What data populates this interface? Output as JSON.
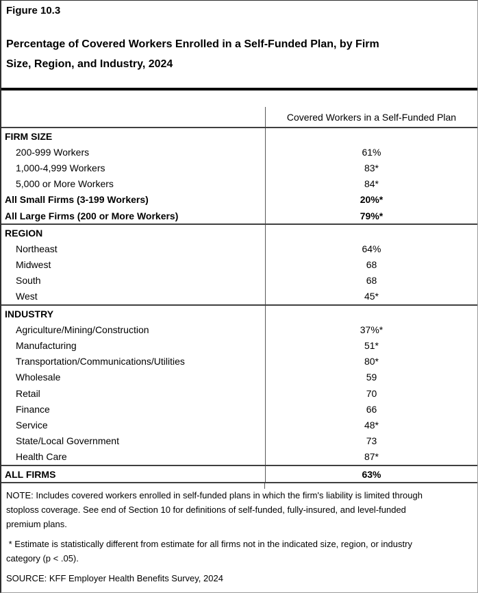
{
  "figure_label": "Figure 10.3",
  "title_lines": [
    "Percentage of Covered Workers Enrolled in a Self-Funded Plan, by Firm",
    "Size, Region, and Industry, 2024"
  ],
  "table": {
    "value_column_header": "Covered Workers in a Self-Funded Plan",
    "rows": [
      {
        "label": "FIRM SIZE",
        "value": "",
        "variant": "section",
        "rule_above": false
      },
      {
        "label": "200-999 Workers",
        "value": "61%",
        "variant": "indent",
        "rule_above": false
      },
      {
        "label": "1,000-4,999 Workers",
        "value": "83*",
        "variant": "indent",
        "rule_above": false
      },
      {
        "label": "5,000 or More Workers",
        "value": "84*",
        "variant": "indent",
        "rule_above": false
      },
      {
        "label": "All Small Firms (3-199 Workers)",
        "value": "20%*",
        "variant": "summary",
        "rule_above": false
      },
      {
        "label": "All Large Firms (200 or More Workers)",
        "value": "79%*",
        "variant": "summary",
        "rule_above": false
      },
      {
        "label": "REGION",
        "value": "",
        "variant": "section",
        "rule_above": true
      },
      {
        "label": "Northeast",
        "value": "64%",
        "variant": "indent",
        "rule_above": false
      },
      {
        "label": "Midwest",
        "value": "68",
        "variant": "indent",
        "rule_above": false
      },
      {
        "label": "South",
        "value": "68",
        "variant": "indent",
        "rule_above": false
      },
      {
        "label": "West",
        "value": "45*",
        "variant": "indent",
        "rule_above": false
      },
      {
        "label": "INDUSTRY",
        "value": "",
        "variant": "section",
        "rule_above": true
      },
      {
        "label": "Agriculture/Mining/Construction",
        "value": "37%*",
        "variant": "indent",
        "rule_above": false
      },
      {
        "label": "Manufacturing",
        "value": "51*",
        "variant": "indent",
        "rule_above": false
      },
      {
        "label": "Transportation/Communications/Utilities",
        "value": "80*",
        "variant": "indent",
        "rule_above": false
      },
      {
        "label": "Wholesale",
        "value": "59",
        "variant": "indent",
        "rule_above": false
      },
      {
        "label": "Retail",
        "value": "70",
        "variant": "indent",
        "rule_above": false
      },
      {
        "label": "Finance",
        "value": "66",
        "variant": "indent",
        "rule_above": false
      },
      {
        "label": "Service",
        "value": "48*",
        "variant": "indent",
        "rule_above": false
      },
      {
        "label": "State/Local Government",
        "value": "73",
        "variant": "indent",
        "rule_above": false
      },
      {
        "label": "Health Care",
        "value": "87*",
        "variant": "indent",
        "rule_above": false
      },
      {
        "label": "ALL FIRMS",
        "value": "63%",
        "variant": "summary",
        "rule_above": true
      }
    ]
  },
  "notes": {
    "note_lines": [
      "NOTE: Includes covered workers enrolled in self-funded plans in which the firm's liability is limited through",
      "stoploss coverage. See end of Section 10 for definitions of self-funded, fully-insured, and level-funded",
      "premium plans."
    ],
    "asterisk_lines": [
      " * Estimate is statistically different from estimate for all firms not in the indicated size, region, or industry",
      "category (p < .05)."
    ],
    "source": "SOURCE: KFF Employer Health Benefits Survey, 2024"
  },
  "colors": {
    "title_rule": "#000000",
    "section_rule": "#3f3f3f",
    "column_divider": "#595959",
    "text": "#000000",
    "background": "#ffffff"
  },
  "chart_data": {
    "type": "table",
    "title": "Percentage of Covered Workers Enrolled in a Self-Funded Plan, by Firm Size, Region, and Industry, 2024",
    "figure_number": "Figure 10.3",
    "column_header": "Covered Workers in a Self-Funded Plan",
    "units": "percent of covered workers",
    "groups": [
      {
        "name": "FIRM SIZE",
        "categories": [
          "200-999 Workers",
          "1,000-4,999 Workers",
          "5,000 or More Workers",
          "All Small Firms (3-199 Workers)",
          "All Large Firms (200 or More Workers)"
        ],
        "values": [
          61,
          83,
          84,
          20,
          79
        ],
        "statistically_significant": [
          false,
          true,
          true,
          true,
          true
        ]
      },
      {
        "name": "REGION",
        "categories": [
          "Northeast",
          "Midwest",
          "South",
          "West"
        ],
        "values": [
          64,
          68,
          68,
          45
        ],
        "statistically_significant": [
          false,
          false,
          false,
          true
        ]
      },
      {
        "name": "INDUSTRY",
        "categories": [
          "Agriculture/Mining/Construction",
          "Manufacturing",
          "Transportation/Communications/Utilities",
          "Wholesale",
          "Retail",
          "Finance",
          "Service",
          "State/Local Government",
          "Health Care"
        ],
        "values": [
          37,
          51,
          80,
          59,
          70,
          66,
          48,
          73,
          87
        ],
        "statistically_significant": [
          true,
          true,
          true,
          false,
          false,
          false,
          true,
          false,
          true
        ]
      },
      {
        "name": "ALL FIRMS",
        "categories": [
          "ALL FIRMS"
        ],
        "values": [
          63
        ],
        "statistically_significant": [
          false
        ]
      }
    ]
  }
}
